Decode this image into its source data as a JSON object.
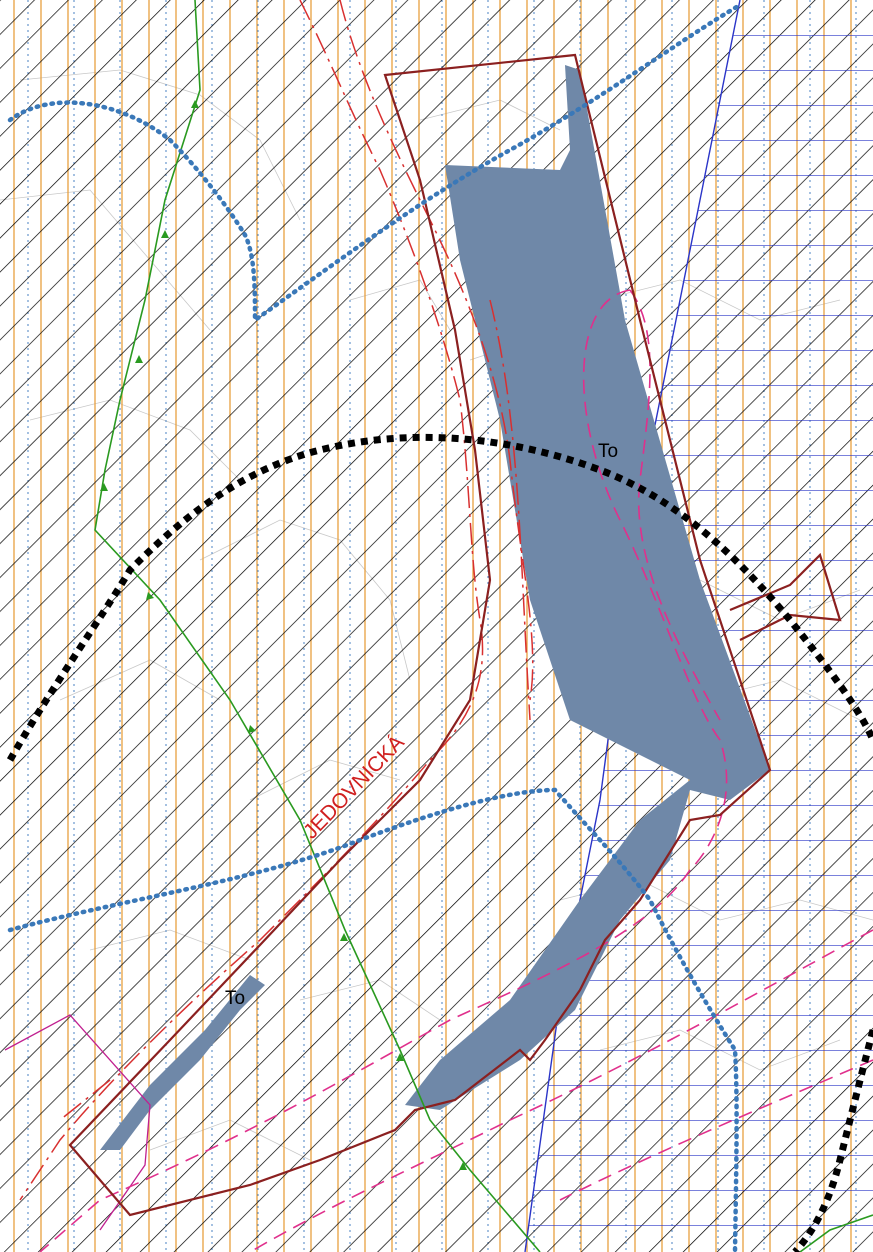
{
  "map": {
    "labels": {
      "street_name": "JEDOVNICKÁ",
      "zone_code_1": "To",
      "zone_code_2": "To"
    },
    "colors": {
      "background": "#ffffff",
      "diagonal_hatch": "#000000",
      "vertical_orange_lines": "#e8a040",
      "vertical_blue_dotted_lines": "#5b8ec8",
      "blue_horizontal_hatch": "#2b35c8",
      "grey_fill": "#6f88a8",
      "brown_boundary": "#8b2020",
      "red_dashdot_line": "#d83030",
      "pink_dashed_line": "#e0308c",
      "magenta_polygon": "#c02090",
      "green_watercourse": "#2a9a20",
      "blue_dotted_boundary": "#3a78b8",
      "black_dashed_boundary": "#000000",
      "street_label": "#d02020"
    }
  }
}
